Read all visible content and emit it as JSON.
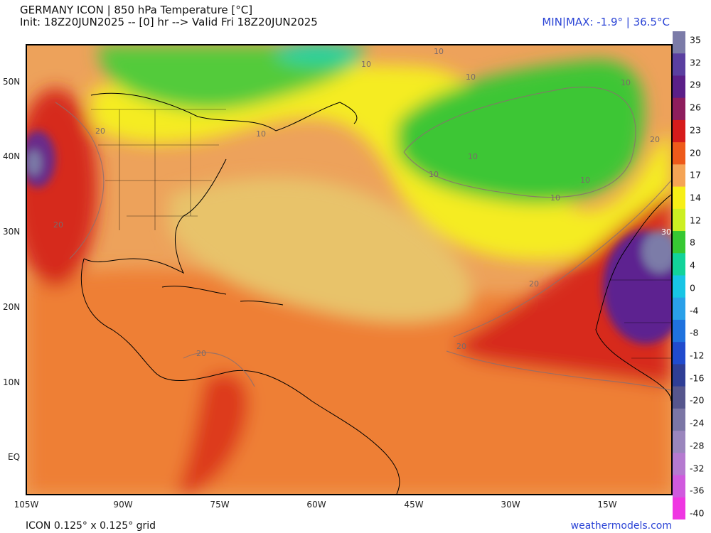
{
  "header": {
    "title": "GERMANY ICON | 850 hPa Temperature [°C]",
    "subtitle": "Init: 18Z20JUN2025 -- [0] hr --> Valid Fri 18Z20JUN2025",
    "minmax": "MIN|MAX: -1.9° | 36.5°C"
  },
  "axes": {
    "lat_labels": [
      "50N",
      "40N",
      "30N",
      "20N",
      "10N",
      "EQ"
    ],
    "lon_labels": [
      "105W",
      "90W",
      "75W",
      "60W",
      "45W",
      "30W",
      "15W"
    ]
  },
  "colorbar": {
    "labels": [
      "35",
      "32",
      "29",
      "26",
      "23",
      "20",
      "17",
      "14",
      "12",
      "8",
      "4",
      "0",
      "-4",
      "-8",
      "-12",
      "-16",
      "-20",
      "-24",
      "-28",
      "-32",
      "-36",
      "-40"
    ],
    "colors": [
      "#7b7ba8",
      "#5a3fa0",
      "#5b1f88",
      "#8e1d5d",
      "#d61b1b",
      "#ee5a1a",
      "#f5a455",
      "#f7ef16",
      "#ccef22",
      "#37c833",
      "#12d39a",
      "#18c5e5",
      "#2aa0e9",
      "#1f72de",
      "#214bcd",
      "#2f3e95",
      "#56568d",
      "#7b76a5",
      "#9a86bd",
      "#b57ad0",
      "#d05ade",
      "#ef36e2"
    ]
  },
  "map_labels": {
    "contours": [
      "10",
      "10",
      "10",
      "10",
      "10",
      "10",
      "10",
      "10",
      "10",
      "20",
      "20",
      "20",
      "20",
      "20",
      "20",
      "30"
    ]
  },
  "footer": {
    "grid": "ICON 0.125° x 0.125° grid",
    "site": "weathermodels.com"
  }
}
